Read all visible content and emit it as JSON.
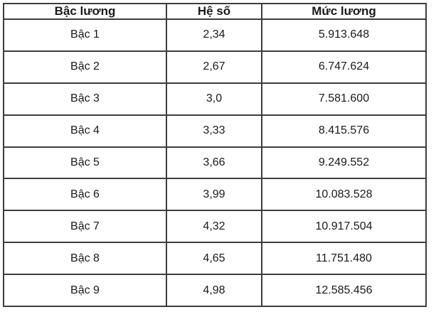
{
  "table": {
    "headers": {
      "grade": "Bậc lương",
      "coefficient": "Hệ số",
      "salary": "Mức lương"
    },
    "rows": [
      {
        "grade": "Bậc 1",
        "coefficient": "2,34",
        "salary": "5.913.648"
      },
      {
        "grade": "Bậc 2",
        "coefficient": "2,67",
        "salary": "6.747.624"
      },
      {
        "grade": "Bậc 3",
        "coefficient": "3,0",
        "salary": "7.581.600"
      },
      {
        "grade": "Bậc 4",
        "coefficient": "3,33",
        "salary": "8.415.576"
      },
      {
        "grade": "Bậc 5",
        "coefficient": "3,66",
        "salary": "9.249.552"
      },
      {
        "grade": "Bậc 6",
        "coefficient": "3,99",
        "salary": "10.083.528"
      },
      {
        "grade": "Bậc 7",
        "coefficient": "4,32",
        "salary": "10.917.504"
      },
      {
        "grade": "Bậc 8",
        "coefficient": "4,65",
        "salary": "11.751.480"
      },
      {
        "grade": "Bậc 9",
        "coefficient": "4,98",
        "salary": "12.585.456"
      }
    ],
    "colors": {
      "border": "#3d3d3d",
      "text": "#1a1a1a",
      "background": "#ffffff"
    }
  }
}
